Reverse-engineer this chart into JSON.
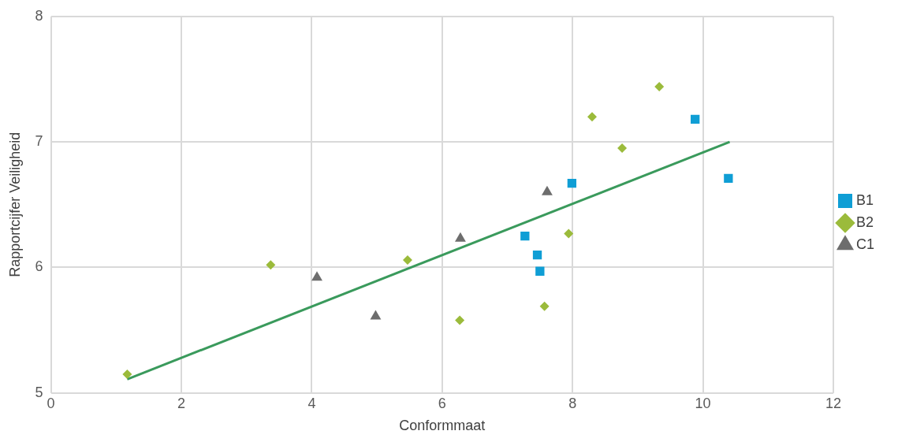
{
  "chart_data": {
    "type": "scatter",
    "xlabel": "Conformmaat",
    "ylabel": "Rapportcijfer Veiligheid",
    "xlim": [
      0,
      12
    ],
    "xticks": [
      0,
      2,
      4,
      6,
      8,
      10,
      12
    ],
    "ylim": [
      5,
      8
    ],
    "yticks": [
      5,
      6,
      7,
      8
    ],
    "grid": true,
    "legend": "right",
    "series": [
      {
        "name": "B1",
        "color": "#0f9ed5",
        "marker": "square",
        "x": [
          7.99,
          9.88,
          10.39,
          7.27,
          7.46,
          7.5
        ],
        "values": [
          6.67,
          7.18,
          6.71,
          6.25,
          6.1,
          5.97
        ]
      },
      {
        "name": "B2",
        "color": "#9bbb3b",
        "marker": "diamond",
        "x": [
          1.17,
          3.37,
          5.47,
          6.27,
          7.57,
          7.94,
          8.3,
          8.76,
          9.33
        ],
        "values": [
          5.15,
          6.02,
          6.06,
          5.58,
          5.69,
          6.27,
          7.2,
          6.95,
          7.44
        ]
      },
      {
        "name": "C1",
        "color": "#6d6d6d",
        "marker": "triangle",
        "x": [
          4.08,
          4.98,
          6.28,
          7.61
        ],
        "values": [
          5.92,
          5.61,
          6.23,
          6.6
        ]
      },
      {
        "type": "line",
        "color": "#3a9a5c",
        "marker": "none",
        "x": [
          1.17,
          10.41
        ],
        "values": [
          5.11,
          7.0
        ]
      }
    ]
  }
}
